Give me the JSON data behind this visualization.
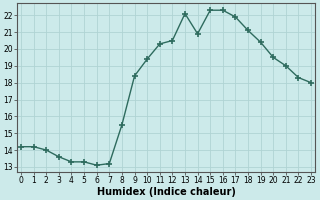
{
  "x": [
    0,
    1,
    2,
    3,
    4,
    5,
    6,
    7,
    8,
    9,
    10,
    11,
    12,
    13,
    14,
    15,
    16,
    17,
    18,
    19,
    20,
    21,
    22,
    23
  ],
  "y": [
    14.2,
    14.2,
    14.0,
    13.6,
    13.3,
    13.3,
    13.1,
    13.2,
    15.5,
    18.4,
    19.4,
    20.3,
    20.5,
    22.1,
    20.9,
    22.3,
    22.3,
    21.9,
    21.1,
    20.4,
    19.5,
    19.0,
    18.3,
    18.0
  ],
  "line_color": "#2e6b5e",
  "marker": "+",
  "markersize": 4,
  "markeredgewidth": 1.2,
  "linewidth": 1.0,
  "background_color": "#cceaea",
  "grid_color": "#b0d4d4",
  "xlabel": "Humidex (Indice chaleur)",
  "xlabel_fontsize": 7,
  "ytick_labels": [
    "13",
    "14",
    "15",
    "16",
    "17",
    "18",
    "19",
    "20",
    "21",
    "22"
  ],
  "ytick_vals": [
    13,
    14,
    15,
    16,
    17,
    18,
    19,
    20,
    21,
    22
  ],
  "xtick_vals": [
    0,
    1,
    2,
    3,
    4,
    5,
    6,
    7,
    8,
    9,
    10,
    11,
    12,
    13,
    14,
    15,
    16,
    17,
    18,
    19,
    20,
    21,
    22,
    23
  ],
  "xtick_labels": [
    "0",
    "1",
    "2",
    "3",
    "4",
    "5",
    "6",
    "7",
    "8",
    "9",
    "10",
    "11",
    "12",
    "13",
    "14",
    "15",
    "16",
    "17",
    "18",
    "19",
    "20",
    "21",
    "22",
    "23"
  ],
  "xlim": [
    -0.3,
    23.3
  ],
  "ylim": [
    12.7,
    22.7
  ],
  "tick_fontsize": 5.5
}
